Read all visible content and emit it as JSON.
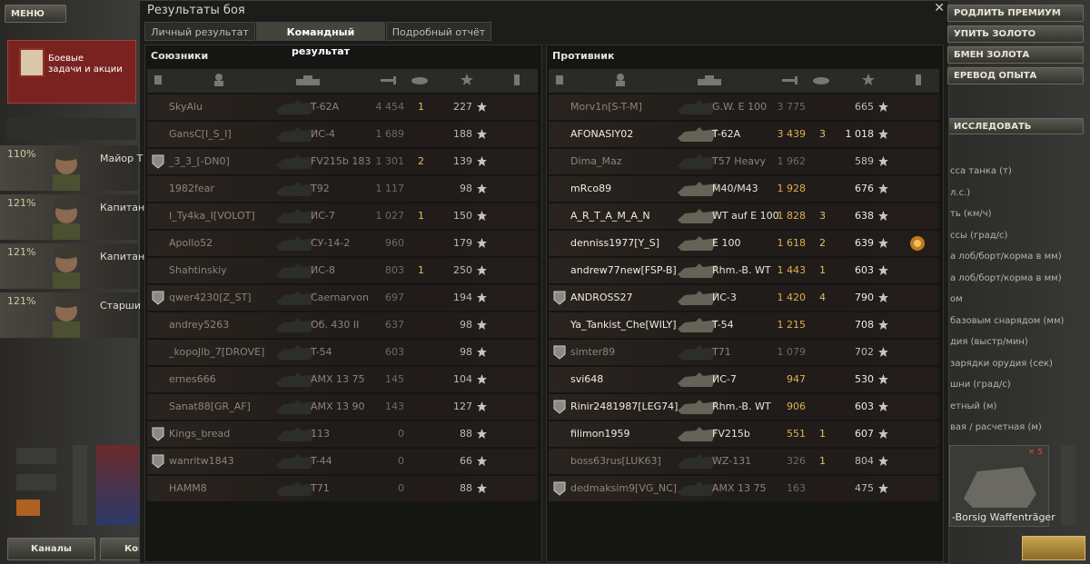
{
  "window": {
    "title": "Результаты боя",
    "tabs": [
      "Личный результат",
      "Командный результат",
      "Подробный отчёт"
    ],
    "active_tab": 1
  },
  "allies": {
    "title": "Союзники",
    "rows": [
      {
        "name": "SkyAlu",
        "tank": "T-62A",
        "damage": "4 454",
        "frags": "1",
        "xp": "227",
        "destroyed": true,
        "platoon": false
      },
      {
        "name": "GansC[I_S_I]",
        "tank": "ИС-4",
        "damage": "1 689",
        "frags": null,
        "xp": "188",
        "destroyed": true,
        "platoon": false
      },
      {
        "name": "_3_3_[-DN0]",
        "tank": "FV215b 183",
        "damage": "1 301",
        "frags": "2",
        "xp": "139",
        "destroyed": true,
        "platoon": true
      },
      {
        "name": "1982fear",
        "tank": "T92",
        "damage": "1 117",
        "frags": null,
        "xp": "98",
        "destroyed": true,
        "platoon": false
      },
      {
        "name": "I_Ty4ka_I[VOLOT]",
        "tank": "ИС-7",
        "damage": "1 027",
        "frags": "1",
        "xp": "150",
        "destroyed": true,
        "platoon": false
      },
      {
        "name": "Apollo52",
        "tank": "СУ-14-2",
        "damage": "960",
        "frags": null,
        "xp": "179",
        "destroyed": true,
        "platoon": false
      },
      {
        "name": "Shahtinskiy",
        "tank": "ИС-8",
        "damage": "803",
        "frags": "1",
        "xp": "250",
        "destroyed": true,
        "platoon": false
      },
      {
        "name": "qwer4230[Z_ST]",
        "tank": "Caernarvon",
        "damage": "697",
        "frags": null,
        "xp": "194",
        "destroyed": true,
        "platoon": true
      },
      {
        "name": "andrey5263",
        "tank": "Об. 430 II",
        "damage": "637",
        "frags": null,
        "xp": "98",
        "destroyed": true,
        "platoon": false
      },
      {
        "name": "_kopoJlb_7[DROVE]",
        "tank": "T-54",
        "damage": "603",
        "frags": null,
        "xp": "98",
        "destroyed": true,
        "platoon": false
      },
      {
        "name": "ernes666",
        "tank": "AMX 13 75",
        "damage": "145",
        "frags": null,
        "xp": "104",
        "destroyed": true,
        "platoon": false
      },
      {
        "name": "Sanat88[GR_AF]",
        "tank": "AMX 13 90",
        "damage": "143",
        "frags": null,
        "xp": "127",
        "destroyed": true,
        "platoon": false
      },
      {
        "name": "Kings_bread",
        "tank": "113",
        "damage": "0",
        "frags": null,
        "xp": "88",
        "destroyed": true,
        "platoon": true
      },
      {
        "name": "wanritw1843",
        "tank": "T-44",
        "damage": "0",
        "frags": null,
        "xp": "66",
        "destroyed": true,
        "platoon": true
      },
      {
        "name": "HAMM8",
        "tank": "T71",
        "damage": "0",
        "frags": null,
        "xp": "88",
        "destroyed": true,
        "platoon": false
      }
    ]
  },
  "enemies": {
    "title": "Противник",
    "rows": [
      {
        "name": "Morv1n[S-T-M]",
        "tank": "G.W. E 100",
        "damage": "3 775",
        "frags": null,
        "xp": "665",
        "destroyed": true,
        "platoon": false
      },
      {
        "name": "AFONASIY02",
        "tank": "T-62A",
        "damage": "3 439",
        "frags": "3",
        "xp": "1 018",
        "destroyed": false,
        "platoon": false
      },
      {
        "name": "Dima_Maz",
        "tank": "T57 Heavy",
        "damage": "1 962",
        "frags": null,
        "xp": "589",
        "destroyed": true,
        "platoon": false
      },
      {
        "name": "mRco89",
        "tank": "M40/M43",
        "damage": "1 928",
        "frags": null,
        "xp": "676",
        "destroyed": false,
        "platoon": false
      },
      {
        "name": "A_R_T_A_M_A_N",
        "tank": "WT auf E 100",
        "damage": "1 828",
        "frags": "3",
        "xp": "638",
        "destroyed": false,
        "platoon": false
      },
      {
        "name": "denniss1977[Y_S]",
        "tank": "E 100",
        "damage": "1 618",
        "frags": "2",
        "xp": "639",
        "destroyed": false,
        "platoon": false,
        "medal": true
      },
      {
        "name": "andrew77new[FSP-B]",
        "tank": "Rhm.-B. WT",
        "damage": "1 443",
        "frags": "1",
        "xp": "603",
        "destroyed": false,
        "platoon": false
      },
      {
        "name": "ANDROSS27",
        "tank": "ИС-3",
        "damage": "1 420",
        "frags": "4",
        "xp": "790",
        "destroyed": false,
        "platoon": true
      },
      {
        "name": "Ya_Tankist_Che[WILY]",
        "tank": "T-54",
        "damage": "1 215",
        "frags": null,
        "xp": "708",
        "destroyed": false,
        "platoon": false
      },
      {
        "name": "simter89",
        "tank": "T71",
        "damage": "1 079",
        "frags": null,
        "xp": "702",
        "destroyed": true,
        "platoon": true
      },
      {
        "name": "svi648",
        "tank": "ИС-7",
        "damage": "947",
        "frags": null,
        "xp": "530",
        "destroyed": false,
        "platoon": false
      },
      {
        "name": "Rinir2481987[LEG74]",
        "tank": "Rhm.-B. WT",
        "damage": "906",
        "frags": null,
        "xp": "603",
        "destroyed": false,
        "platoon": true
      },
      {
        "name": "filimon1959",
        "tank": "FV215b",
        "damage": "551",
        "frags": "1",
        "xp": "607",
        "destroyed": false,
        "platoon": false
      },
      {
        "name": "boss63rus[LUK63]",
        "tank": "WZ-131",
        "damage": "326",
        "frags": "1",
        "xp": "804",
        "destroyed": true,
        "platoon": false
      },
      {
        "name": "dedmaksim9[VG_NC]",
        "tank": "AMX 13 75",
        "damage": "163",
        "frags": null,
        "xp": "475",
        "destroyed": true,
        "platoon": true
      }
    ]
  },
  "background": {
    "menu": "МЕНЮ",
    "quest": [
      "Боевые",
      "задачи и акции"
    ],
    "crew": [
      {
        "percent": "110%",
        "rank": "Майор Т"
      },
      {
        "percent": "121%",
        "rank": "Капитан"
      },
      {
        "percent": "121%",
        "rank": "Капитан"
      },
      {
        "percent": "121%",
        "rank": "Старши"
      }
    ],
    "right_menu": [
      "РОДЛИТЬ ПРЕМИУМ",
      "УПИТЬ ЗОЛОТО",
      "БМЕН ЗОЛОТА",
      "ЕРЕВОД ОПЫТА"
    ],
    "research": "ИССЛЕДОВАТЬ",
    "stats": [
      "сса танка (т)",
      "л.с.)",
      "ть (км/ч)",
      "ссы (град/с)",
      "а лоб/борт/корма в мм)",
      "а лоб/борт/корма в мм)",
      "ом",
      "базовым снарядом (мм)",
      "дия (выстр/мин)",
      "зарядки орудия (сек)",
      "шни (град/с)",
      "етный (м)",
      "вая / расчетная (м)"
    ],
    "vehicle": "-Borsig Waffenträger",
    "vehicle_count": "× 5",
    "bottom": [
      "Каналы",
      "Кон"
    ]
  }
}
